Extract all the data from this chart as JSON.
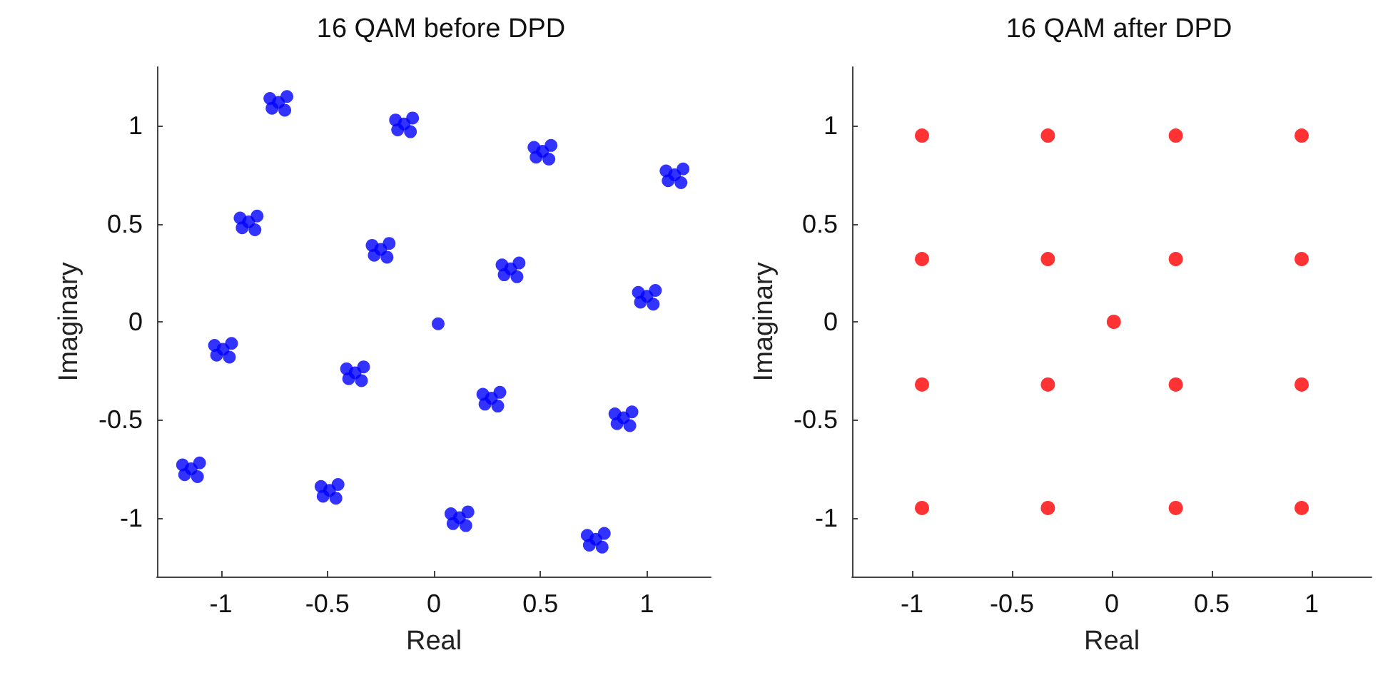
{
  "chart_data": [
    {
      "type": "scatter",
      "title": "16 QAM before DPD",
      "xlabel": "Real",
      "ylabel": "Imaginary",
      "color": "#0000ff",
      "marker": "circle",
      "grid": false,
      "xlim": [
        -1.3,
        1.3
      ],
      "ylim": [
        -1.3,
        1.3
      ],
      "xticks": [
        -1,
        -0.5,
        0,
        0.5,
        1
      ],
      "yticks": [
        -1,
        -0.5,
        0,
        0.5,
        1
      ],
      "x": [
        -0.73,
        -0.69,
        -0.77,
        -0.7,
        -0.76,
        -0.14,
        -0.1,
        -0.18,
        -0.11,
        -0.17,
        0.51,
        0.55,
        0.47,
        0.54,
        0.48,
        1.13,
        1.17,
        1.09,
        1.16,
        1.1,
        -0.87,
        -0.83,
        -0.91,
        -0.84,
        -0.9,
        -0.25,
        -0.21,
        -0.29,
        -0.22,
        -0.28,
        0.36,
        0.4,
        0.32,
        0.39,
        0.33,
        1.0,
        1.04,
        0.96,
        1.03,
        0.97,
        0.02,
        -0.99,
        -0.95,
        -1.03,
        -0.96,
        -1.02,
        -0.37,
        -0.33,
        -0.41,
        -0.34,
        -0.4,
        0.27,
        0.31,
        0.23,
        0.3,
        0.24,
        0.89,
        0.93,
        0.85,
        0.92,
        0.86,
        -1.14,
        -1.1,
        -1.18,
        -1.11,
        -1.17,
        -0.49,
        -0.45,
        -0.53,
        -0.46,
        -0.52,
        0.12,
        0.16,
        0.08,
        0.15,
        0.09,
        0.76,
        0.8,
        0.72,
        0.79,
        0.73
      ],
      "values": [
        1.12,
        1.15,
        1.14,
        1.08,
        1.09,
        1.01,
        1.04,
        1.03,
        0.97,
        0.98,
        0.87,
        0.9,
        0.89,
        0.83,
        0.84,
        0.75,
        0.78,
        0.77,
        0.71,
        0.72,
        0.51,
        0.54,
        0.53,
        0.47,
        0.48,
        0.37,
        0.4,
        0.39,
        0.33,
        0.34,
        0.27,
        0.3,
        0.29,
        0.23,
        0.24,
        0.13,
        0.16,
        0.15,
        0.09,
        0.1,
        -0.01,
        -0.14,
        -0.11,
        -0.12,
        -0.18,
        -0.17,
        -0.26,
        -0.23,
        -0.24,
        -0.3,
        -0.29,
        -0.39,
        -0.36,
        -0.37,
        -0.43,
        -0.42,
        -0.49,
        -0.46,
        -0.47,
        -0.53,
        -0.52,
        -0.75,
        -0.72,
        -0.73,
        -0.79,
        -0.78,
        -0.86,
        -0.83,
        -0.84,
        -0.9,
        -0.89,
        -1.0,
        -0.97,
        -0.98,
        -1.04,
        -1.03,
        -1.11,
        -1.08,
        -1.09,
        -1.15,
        -1.14
      ]
    },
    {
      "type": "scatter",
      "title": "16 QAM after DPD",
      "xlabel": "Real",
      "ylabel": "Imaginary",
      "color": "#ff0000",
      "marker": "circle",
      "grid": false,
      "xlim": [
        -1.3,
        1.3
      ],
      "ylim": [
        -1.3,
        1.3
      ],
      "xticks": [
        -1,
        -0.5,
        0,
        0.5,
        1
      ],
      "yticks": [
        -1,
        -0.5,
        0,
        0.5,
        1
      ],
      "x": [
        -0.95,
        -0.32,
        0.32,
        0.95,
        -0.95,
        -0.32,
        0.32,
        0.95,
        0.01,
        -0.95,
        -0.32,
        0.32,
        0.95,
        -0.95,
        -0.32,
        0.32,
        0.95
      ],
      "values": [
        0.95,
        0.95,
        0.95,
        0.95,
        0.32,
        0.32,
        0.32,
        0.32,
        0,
        -0.32,
        -0.32,
        -0.32,
        -0.32,
        -0.95,
        -0.95,
        -0.95,
        -0.95
      ]
    }
  ]
}
